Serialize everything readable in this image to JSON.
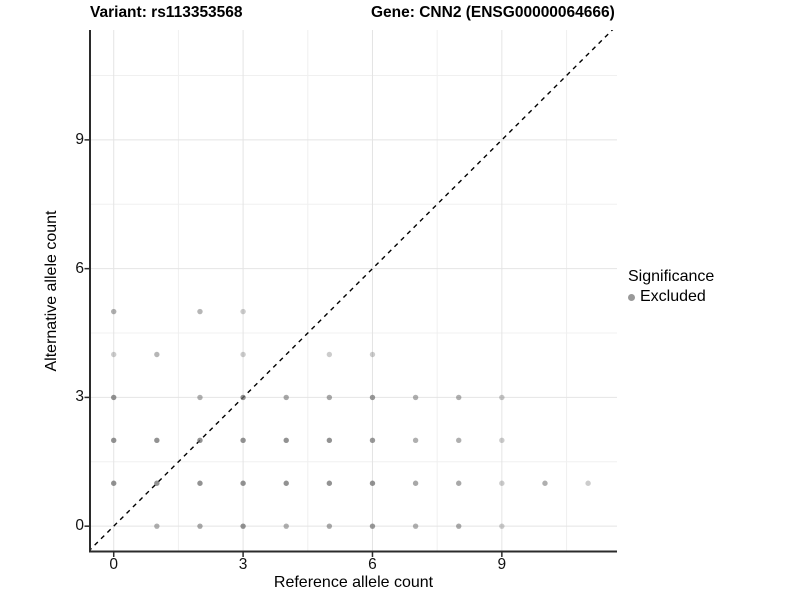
{
  "titles": {
    "left": "Variant: rs113353568",
    "right": "Gene: CNN2 (ENSG00000064666)"
  },
  "chart_data": {
    "type": "scatter",
    "title_left": "Variant: rs113353568",
    "title_right": "Gene: CNN2 (ENSG00000064666)",
    "xlabel": "Reference allele count",
    "ylabel": "Alternative allele count",
    "xlim": [
      -0.55,
      11.67
    ],
    "ylim": [
      -0.59,
      11.56
    ],
    "x_ticks": [
      0,
      3,
      6,
      9
    ],
    "y_ticks": [
      0,
      3,
      6,
      9
    ],
    "x_minor_gridlines": [
      1.5,
      4.5,
      7.5,
      10.5
    ],
    "y_minor_gridlines": [
      1.5,
      4.5,
      7.5,
      10.5
    ],
    "grid": true,
    "legend_position": "right",
    "legend": {
      "title": "Significance",
      "items": [
        {
          "label": "Excluded",
          "color": "#6e6e6e",
          "alpha": 0.7
        }
      ]
    },
    "identity_line": {
      "style": "dashed",
      "color": "#000000",
      "slope": 1,
      "intercept": 0
    },
    "point_color": "#6e6e6e",
    "point_radius": 2.7,
    "series": [
      {
        "name": "Excluded",
        "points_format": [
          "ref_allele_count_x",
          "alt_allele_count_y",
          "alpha"
        ],
        "points": [
          [
            1,
            0,
            0.55
          ],
          [
            2,
            0,
            0.6
          ],
          [
            3,
            0,
            0.75
          ],
          [
            4,
            0,
            0.55
          ],
          [
            5,
            0,
            0.6
          ],
          [
            6,
            0,
            0.7
          ],
          [
            7,
            0,
            0.55
          ],
          [
            8,
            0,
            0.6
          ],
          [
            9,
            0,
            0.35
          ],
          [
            0,
            1,
            0.75
          ],
          [
            1,
            1,
            0.75
          ],
          [
            2,
            1,
            0.75
          ],
          [
            3,
            1,
            0.75
          ],
          [
            4,
            1,
            0.75
          ],
          [
            5,
            1,
            0.75
          ],
          [
            6,
            1,
            0.75
          ],
          [
            7,
            1,
            0.6
          ],
          [
            8,
            1,
            0.6
          ],
          [
            9,
            1,
            0.35
          ],
          [
            10,
            1,
            0.55
          ],
          [
            11,
            1,
            0.35
          ],
          [
            0,
            2,
            0.75
          ],
          [
            1,
            2,
            0.75
          ],
          [
            2,
            2,
            0.75
          ],
          [
            3,
            2,
            0.75
          ],
          [
            4,
            2,
            0.75
          ],
          [
            5,
            2,
            0.75
          ],
          [
            6,
            2,
            0.7
          ],
          [
            7,
            2,
            0.55
          ],
          [
            8,
            2,
            0.55
          ],
          [
            9,
            2,
            0.35
          ],
          [
            0,
            3,
            0.75
          ],
          [
            2,
            3,
            0.55
          ],
          [
            3,
            3,
            0.75
          ],
          [
            4,
            3,
            0.6
          ],
          [
            5,
            3,
            0.6
          ],
          [
            6,
            3,
            0.7
          ],
          [
            7,
            3,
            0.55
          ],
          [
            8,
            3,
            0.55
          ],
          [
            9,
            3,
            0.4
          ],
          [
            0,
            4,
            0.35
          ],
          [
            1,
            4,
            0.5
          ],
          [
            3,
            4,
            0.35
          ],
          [
            5,
            4,
            0.35
          ],
          [
            6,
            4,
            0.35
          ],
          [
            0,
            5,
            0.55
          ],
          [
            2,
            5,
            0.5
          ],
          [
            3,
            5,
            0.35
          ]
        ]
      }
    ],
    "colors": {
      "background": "#ffffff",
      "major_gridline": "#e4e4e4",
      "minor_gridline": "#f0f0f0",
      "axis_line": "#2b2b2b",
      "tick_label": "#111111",
      "point": "#6e6e6e",
      "identity_line": "#000000"
    }
  }
}
